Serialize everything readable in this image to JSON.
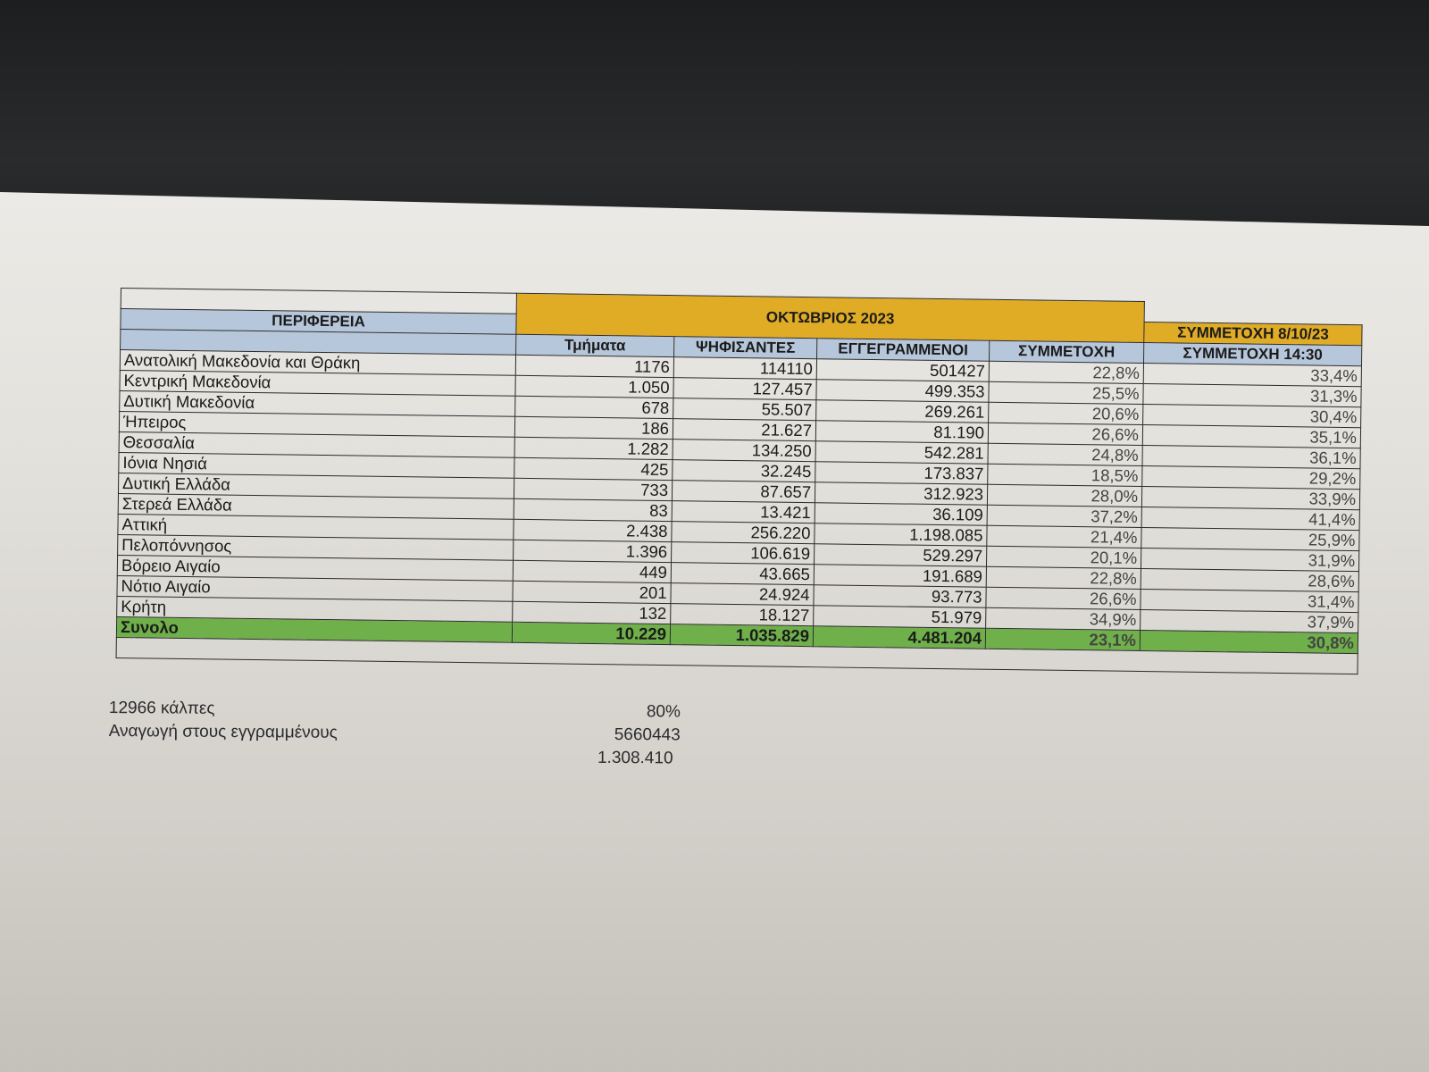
{
  "table": {
    "title_month": "ΟΚΤΩΒΡΙΟΣ 2023",
    "title_participation": "ΣΥΜΜΕΤΟΧΗ 8/10/23",
    "headers": {
      "region": "ΠΕΡΙΦΕΡΕΙΑ",
      "sections": "Τμήματα",
      "voters": "ΨΗΦΙΣΑΝΤΕΣ",
      "registered": "ΕΓΓΕΓΡΑΜΜΕΝΟΙ",
      "turnout": "ΣΥΜΜΕΤΟΧΗ",
      "turnout_1430": "ΣΥΜΜΕΤΟΧΗ 14:30"
    },
    "rows": [
      {
        "region": "Ανατολική Μακεδονία και Θράκη",
        "sections": "1176",
        "voters": "114110",
        "registered": "501427",
        "turnout": "22,8%",
        "turnout_1430": "33,4%"
      },
      {
        "region": "Κεντρική Μακεδονία",
        "sections": "1.050",
        "voters": "127.457",
        "registered": "499.353",
        "turnout": "25,5%",
        "turnout_1430": "31,3%"
      },
      {
        "region": "Δυτική Μακεδονία",
        "sections": "678",
        "voters": "55.507",
        "registered": "269.261",
        "turnout": "20,6%",
        "turnout_1430": "30,4%"
      },
      {
        "region": "Ήπειρος",
        "sections": "186",
        "voters": "21.627",
        "registered": "81.190",
        "turnout": "26,6%",
        "turnout_1430": "35,1%"
      },
      {
        "region": "Θεσσαλία",
        "sections": "1.282",
        "voters": "134.250",
        "registered": "542.281",
        "turnout": "24,8%",
        "turnout_1430": "36,1%"
      },
      {
        "region": "Ιόνια Νησιά",
        "sections": "425",
        "voters": "32.245",
        "registered": "173.837",
        "turnout": "18,5%",
        "turnout_1430": "29,2%"
      },
      {
        "region": "Δυτική Ελλάδα",
        "sections": "733",
        "voters": "87.657",
        "registered": "312.923",
        "turnout": "28,0%",
        "turnout_1430": "33,9%"
      },
      {
        "region": "Στερεά Ελλάδα",
        "sections": "83",
        "voters": "13.421",
        "registered": "36.109",
        "turnout": "37,2%",
        "turnout_1430": "41,4%"
      },
      {
        "region": "Αττική",
        "sections": "2.438",
        "voters": "256.220",
        "registered": "1.198.085",
        "turnout": "21,4%",
        "turnout_1430": "25,9%"
      },
      {
        "region": "Πελοπόννησος",
        "sections": "1.396",
        "voters": "106.619",
        "registered": "529.297",
        "turnout": "20,1%",
        "turnout_1430": "31,9%"
      },
      {
        "region": "Βόρειο Αιγαίο",
        "sections": "449",
        "voters": "43.665",
        "registered": "191.689",
        "turnout": "22,8%",
        "turnout_1430": "28,6%"
      },
      {
        "region": "Νότιο Αιγαίο",
        "sections": "201",
        "voters": "24.924",
        "registered": "93.773",
        "turnout": "26,6%",
        "turnout_1430": "31,4%"
      },
      {
        "region": "Κρήτη",
        "sections": "132",
        "voters": "18.127",
        "registered": "51.979",
        "turnout": "34,9%",
        "turnout_1430": "37,9%"
      }
    ],
    "total": {
      "region": "Συνολο",
      "sections": "10.229",
      "voters": "1.035.829",
      "registered": "4.481.204",
      "turnout": "23,1%",
      "turnout_1430": "30,8%"
    }
  },
  "notes": [
    {
      "label": "12966 κάλπες",
      "value": "80%"
    },
    {
      "label": "Αναγωγή στους εγγραμμένους",
      "value": "5660443"
    },
    {
      "label": "",
      "value": "1.308.410"
    }
  ]
}
